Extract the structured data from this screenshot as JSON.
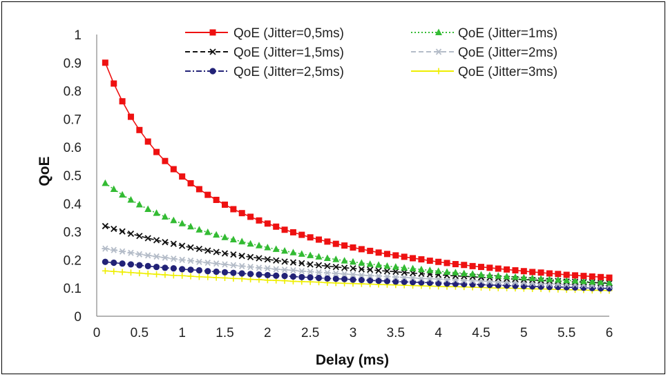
{
  "chart_data": {
    "type": "line",
    "title": "",
    "xlabel": "Delay (ms)",
    "ylabel": "QoE",
    "xlim": [
      0,
      6
    ],
    "ylim": [
      0,
      1
    ],
    "x_ticks": [
      "0",
      "0.5",
      "1",
      "1.5",
      "2",
      "2.5",
      "3",
      "3.5",
      "4",
      "4.5",
      "5",
      "5.5",
      "6"
    ],
    "y_ticks": [
      "0",
      "0.1",
      "0.2",
      "0.3",
      "0.4",
      "0.5",
      "0.6",
      "0.7",
      "0.8",
      "0.9",
      "1"
    ],
    "grid": false,
    "legend_position": "top",
    "x": [
      0.1,
      0.2,
      0.3,
      0.4,
      0.5,
      0.6,
      0.7,
      0.8,
      0.9,
      1.0,
      1.1,
      1.2,
      1.3,
      1.4,
      1.5,
      1.6,
      1.7,
      1.8,
      1.9,
      2.0,
      2.1,
      2.2,
      2.3,
      2.4,
      2.5,
      2.6,
      2.7,
      2.8,
      2.9,
      3.0,
      3.1,
      3.2,
      3.3,
      3.4,
      3.5,
      3.6,
      3.7,
      3.8,
      3.9,
      4.0,
      4.1,
      4.2,
      4.3,
      4.4,
      4.5,
      4.6,
      4.7,
      4.8,
      4.9,
      5.0,
      5.1,
      5.2,
      5.3,
      5.4,
      5.5,
      5.6,
      5.7,
      5.8,
      5.9,
      6.0
    ],
    "series": [
      {
        "name": "QoE (Jitter=0,5ms)",
        "color": "#ee1111",
        "marker": "square",
        "dash": "solid",
        "values": [
          0.9,
          0.826,
          0.763,
          0.708,
          0.661,
          0.62,
          0.583,
          0.551,
          0.522,
          0.496,
          0.472,
          0.451,
          0.431,
          0.413,
          0.396,
          0.38,
          0.366,
          0.353,
          0.34,
          0.329,
          0.318,
          0.307,
          0.298,
          0.289,
          0.28,
          0.272,
          0.265,
          0.257,
          0.251,
          0.244,
          0.238,
          0.232,
          0.226,
          0.221,
          0.216,
          0.211,
          0.206,
          0.202,
          0.197,
          0.193,
          0.189,
          0.185,
          0.182,
          0.178,
          0.175,
          0.172,
          0.169,
          0.166,
          0.163,
          0.16,
          0.157,
          0.155,
          0.152,
          0.15,
          0.147,
          0.145,
          0.143,
          0.141,
          0.139,
          0.137
        ]
      },
      {
        "name": "QoE (Jitter=1ms)",
        "color": "#33bb33",
        "marker": "triangle",
        "dash": "dotted",
        "values": [
          0.472,
          0.451,
          0.431,
          0.413,
          0.396,
          0.38,
          0.366,
          0.353,
          0.34,
          0.329,
          0.318,
          0.307,
          0.298,
          0.289,
          0.28,
          0.272,
          0.265,
          0.257,
          0.251,
          0.244,
          0.238,
          0.232,
          0.226,
          0.221,
          0.216,
          0.211,
          0.206,
          0.202,
          0.197,
          0.193,
          0.189,
          0.185,
          0.182,
          0.178,
          0.175,
          0.172,
          0.169,
          0.166,
          0.163,
          0.16,
          0.157,
          0.155,
          0.152,
          0.15,
          0.147,
          0.145,
          0.143,
          0.141,
          0.139,
          0.137,
          0.135,
          0.133,
          0.131,
          0.129,
          0.127,
          0.126,
          0.124,
          0.122,
          0.121,
          0.119
        ]
      },
      {
        "name": "QoE (Jitter=1,5ms)",
        "color": "#111111",
        "marker": "x",
        "dash": "dashed",
        "values": [
          0.32,
          0.31,
          0.301,
          0.293,
          0.285,
          0.277,
          0.27,
          0.263,
          0.257,
          0.25,
          0.244,
          0.239,
          0.233,
          0.228,
          0.223,
          0.219,
          0.214,
          0.21,
          0.206,
          0.202,
          0.198,
          0.194,
          0.191,
          0.188,
          0.184,
          0.181,
          0.178,
          0.175,
          0.172,
          0.17,
          0.167,
          0.165,
          0.162,
          0.16,
          0.158,
          0.155,
          0.153,
          0.151,
          0.149,
          0.147,
          0.145,
          0.143,
          0.142,
          0.14,
          0.138,
          0.137,
          0.135,
          0.133,
          0.132,
          0.13,
          0.129,
          0.127,
          0.126,
          0.125,
          0.123,
          0.122,
          0.121,
          0.12,
          0.118,
          0.117
        ]
      },
      {
        "name": "QoE (Jitter=2ms)",
        "color": "#b4bcc8",
        "marker": "asterisk",
        "dash": "dashed",
        "values": [
          0.24,
          0.235,
          0.23,
          0.225,
          0.22,
          0.216,
          0.212,
          0.208,
          0.204,
          0.2,
          0.197,
          0.193,
          0.19,
          0.187,
          0.184,
          0.181,
          0.178,
          0.175,
          0.172,
          0.17,
          0.167,
          0.165,
          0.163,
          0.16,
          0.158,
          0.156,
          0.154,
          0.152,
          0.15,
          0.148,
          0.146,
          0.144,
          0.143,
          0.141,
          0.139,
          0.138,
          0.136,
          0.134,
          0.133,
          0.132,
          0.13,
          0.129,
          0.127,
          0.126,
          0.125,
          0.123,
          0.122,
          0.121,
          0.12,
          0.119,
          0.117,
          0.116,
          0.115,
          0.114,
          0.113,
          0.112,
          0.111,
          0.11,
          0.109,
          0.108
        ]
      },
      {
        "name": "QoE (Jitter=2,5ms)",
        "color": "#222277",
        "marker": "circle",
        "dash": "dashdot",
        "values": [
          0.193,
          0.19,
          0.187,
          0.184,
          0.181,
          0.178,
          0.175,
          0.172,
          0.17,
          0.167,
          0.165,
          0.163,
          0.16,
          0.158,
          0.156,
          0.154,
          0.152,
          0.15,
          0.148,
          0.146,
          0.144,
          0.143,
          0.141,
          0.139,
          0.138,
          0.136,
          0.134,
          0.133,
          0.132,
          0.13,
          0.129,
          0.127,
          0.126,
          0.125,
          0.123,
          0.122,
          0.121,
          0.12,
          0.119,
          0.117,
          0.116,
          0.115,
          0.114,
          0.113,
          0.112,
          0.111,
          0.11,
          0.109,
          0.108,
          0.107,
          0.106,
          0.105,
          0.104,
          0.104,
          0.103,
          0.102,
          0.101,
          0.1,
          0.099,
          0.099
        ]
      },
      {
        "name": "QoE (Jitter=3ms)",
        "color": "#eeee00",
        "marker": "plus",
        "dash": "solid",
        "values": [
          0.161,
          0.159,
          0.157,
          0.155,
          0.153,
          0.151,
          0.149,
          0.147,
          0.145,
          0.144,
          0.142,
          0.14,
          0.139,
          0.137,
          0.136,
          0.134,
          0.133,
          0.131,
          0.13,
          0.128,
          0.127,
          0.126,
          0.124,
          0.123,
          0.122,
          0.121,
          0.119,
          0.118,
          0.117,
          0.116,
          0.115,
          0.114,
          0.113,
          0.112,
          0.111,
          0.11,
          0.109,
          0.108,
          0.107,
          0.106,
          0.105,
          0.105,
          0.104,
          0.103,
          0.102,
          0.101,
          0.1,
          0.1,
          0.099,
          0.098,
          0.097,
          0.097,
          0.096,
          0.095,
          0.094,
          0.094,
          0.093,
          0.092,
          0.092,
          0.091
        ]
      }
    ]
  }
}
